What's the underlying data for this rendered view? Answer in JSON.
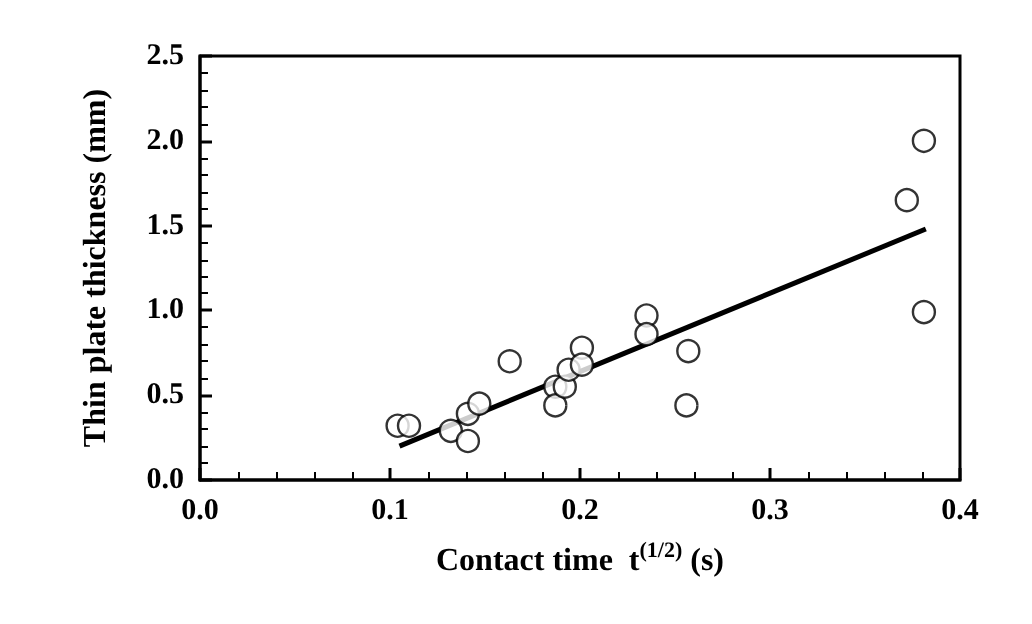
{
  "chart_data": {
    "type": "scatter",
    "xlabel": "Contact time  t$^{(1/2)}$ (s)",
    "ylabel": "Thin plate thickness (mm)",
    "xlim": [
      0,
      0.4
    ],
    "xticks": [
      {
        "value": 0,
        "label": "0.0"
      },
      0.1,
      0.2,
      0.3,
      0.4
    ],
    "ylim": [
      0,
      2.5
    ],
    "yticks": [
      {
        "value": 0,
        "label": "0.0"
      },
      0.5,
      {
        "value": 1,
        "label": "1.0"
      },
      1.5,
      {
        "value": 2,
        "label": "2.0"
      },
      2.5
    ],
    "grid": false,
    "marker": "circle",
    "series": [
      {
        "color": "#000000",
        "x": [
          0.104,
          0.11,
          0.132,
          0.141,
          0.141,
          0.147,
          0.163,
          0.187,
          0.187,
          0.192,
          0.194,
          0.201,
          0.201,
          0.235,
          0.235,
          0.257,
          0.256,
          0.372,
          0.381,
          0.381
        ],
        "values": [
          0.32,
          0.32,
          0.29,
          0.39,
          0.23,
          0.45,
          0.7,
          0.55,
          0.44,
          0.55,
          0.65,
          0.78,
          0.68,
          0.97,
          0.86,
          0.76,
          0.44,
          1.65,
          2.0,
          0.99
        ]
      },
      {
        "type": "line",
        "color": "#000000",
        "marker": "none",
        "line_style": "solid",
        "x": [
          0.105,
          0.382
        ],
        "values": [
          0.2,
          1.48
        ]
      }
    ]
  }
}
